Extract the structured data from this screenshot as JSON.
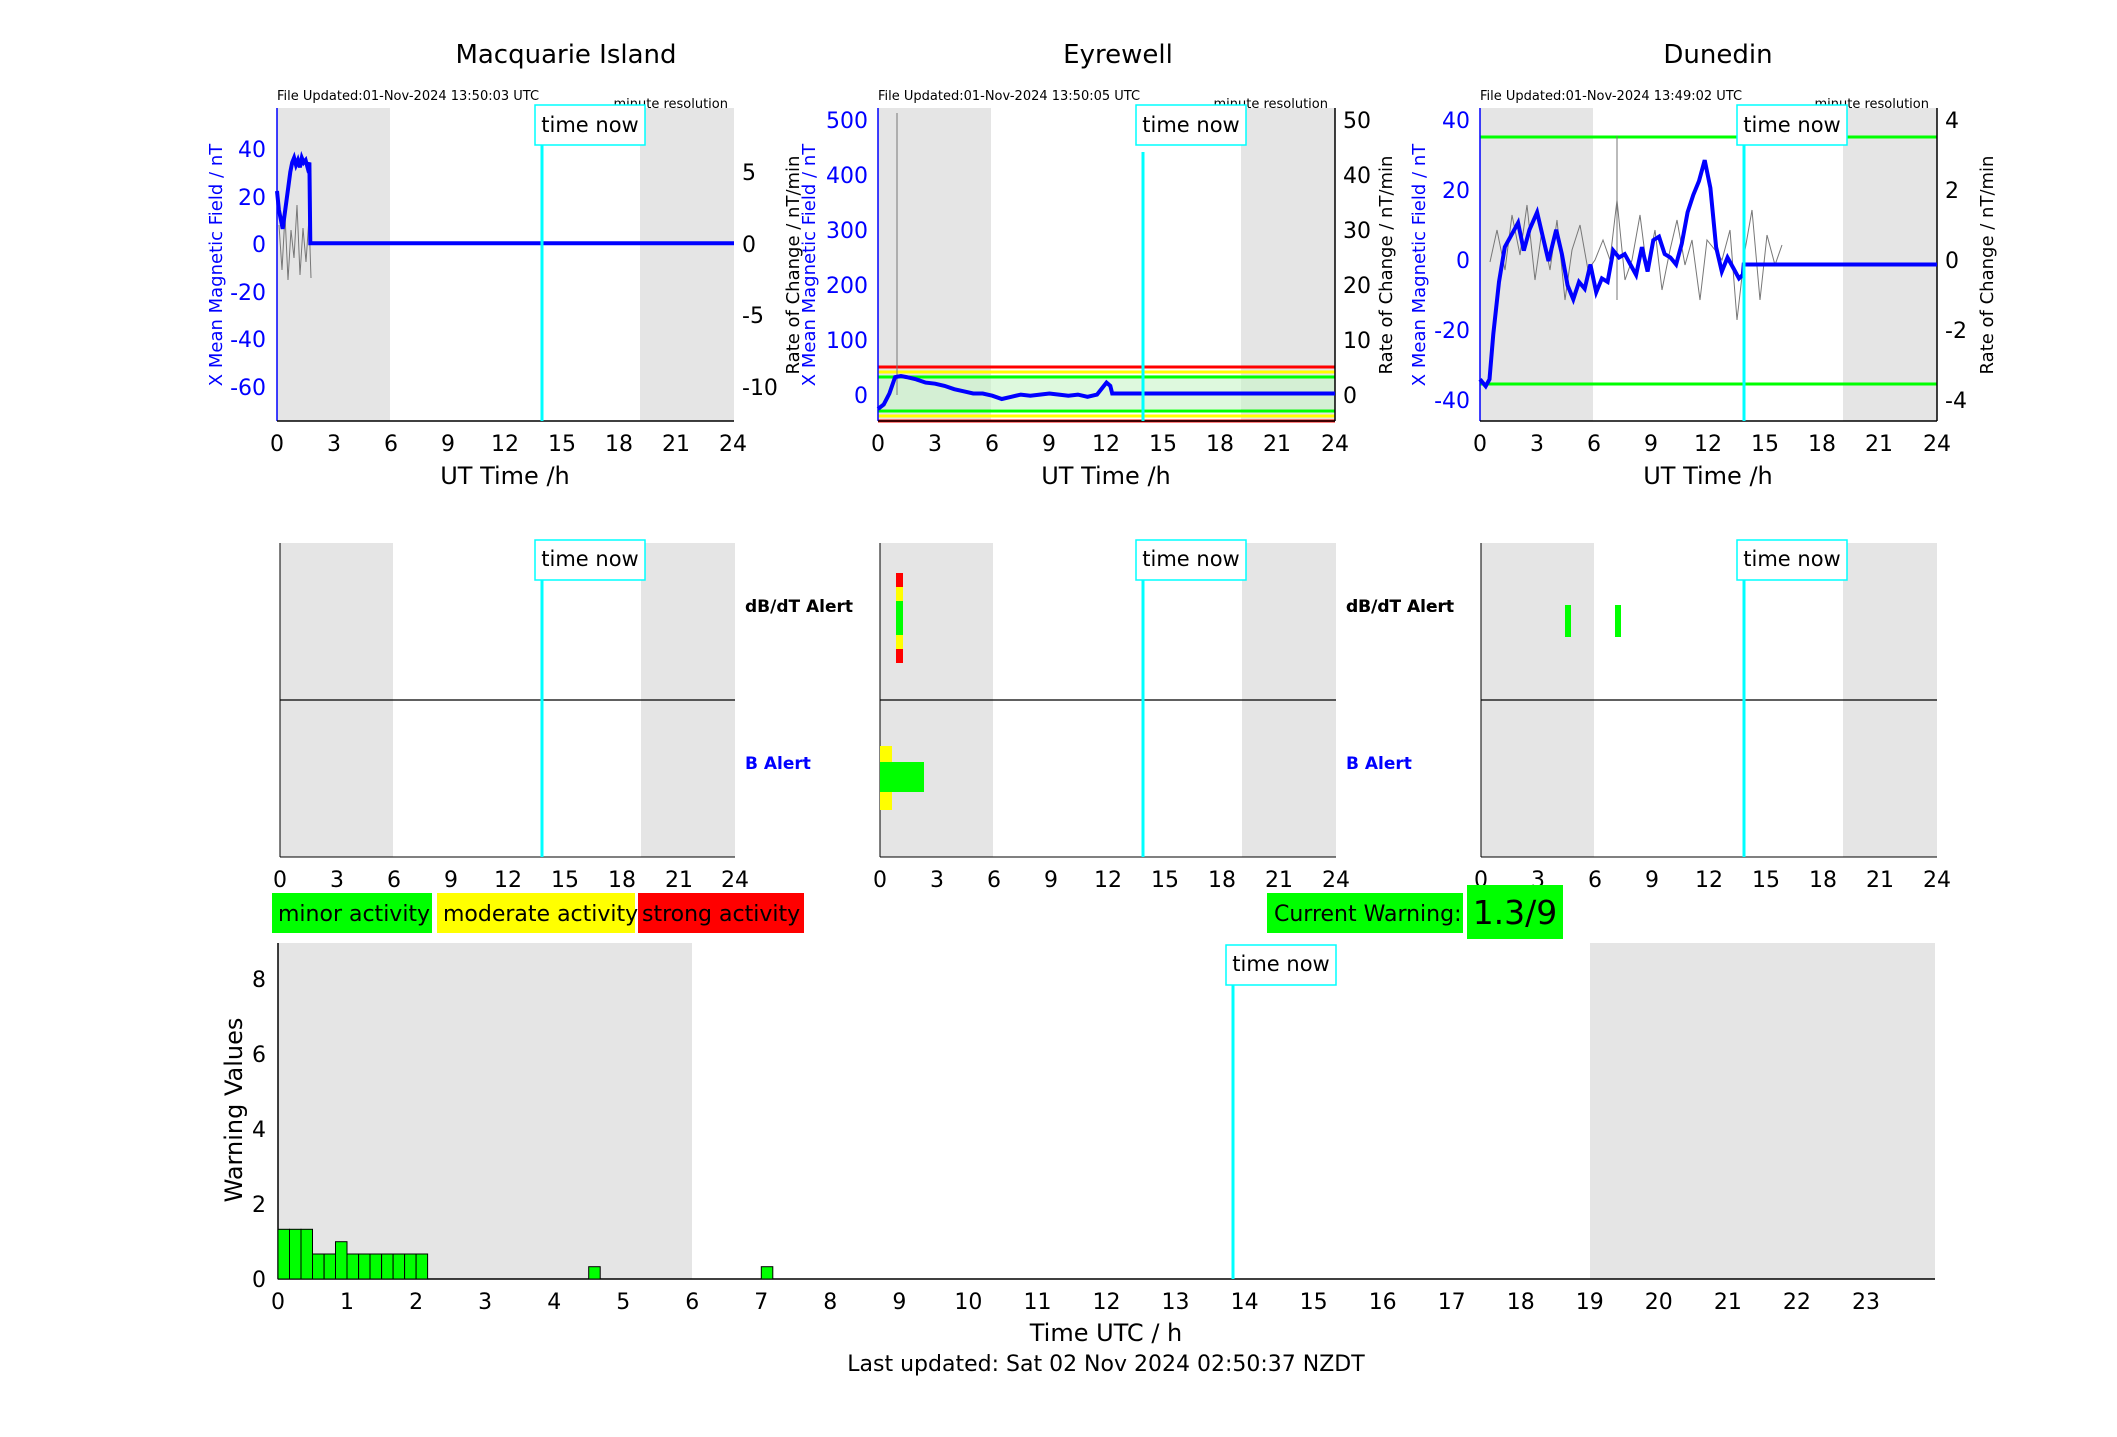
{
  "stations": [
    {
      "name": "Macquarie Island",
      "file_updated": "File Updated:01-Nov-2024 13:50:03 UTC",
      "resolution": "minute resolution",
      "ylabel_left": "X Mean Magnetic Field / nT",
      "ylabel_right": "",
      "left_ticks": [
        "40",
        "20",
        "0",
        "-20",
        "-40",
        "-60"
      ],
      "right_ticks": [
        "5",
        "0",
        "-5",
        "-10"
      ],
      "x_ticks": [
        "0",
        "3",
        "6",
        "9",
        "12",
        "15",
        "18",
        "21",
        "24"
      ],
      "xlabel": "UT Time /h",
      "time_now_label": "time now",
      "dbdt_label": "dB/dT Alert",
      "b_label": "B Alert"
    },
    {
      "name": "Eyrewell",
      "file_updated": "File Updated:01-Nov-2024 13:50:05 UTC",
      "resolution": "minute resolution",
      "ylabel_left": "X Mean Magnetic Field / nT",
      "ylabel_left2": "Rate of Change / nT/min",
      "ylabel_right": "Rate of Change / nT/min",
      "left_ticks": [
        "500",
        "400",
        "300",
        "200",
        "100",
        "0"
      ],
      "right_ticks": [
        "50",
        "40",
        "30",
        "20",
        "10",
        "0"
      ],
      "x_ticks": [
        "0",
        "3",
        "6",
        "9",
        "12",
        "15",
        "18",
        "21",
        "24"
      ],
      "xlabel": "UT Time /h",
      "time_now_label": "time now",
      "dbdt_label": "dB/dT Alert",
      "b_label": "B Alert"
    },
    {
      "name": "Dunedin",
      "file_updated": "File Updated:01-Nov-2024 13:49:02 UTC",
      "resolution": "minute resolution",
      "ylabel_left": "X Mean Magnetic Field / nT",
      "ylabel_right": "Rate of Change / nT/min",
      "left_ticks": [
        "40",
        "20",
        "0",
        "-20",
        "-40"
      ],
      "right_ticks": [
        "4",
        "2",
        "0",
        "-2",
        "-4"
      ],
      "x_ticks": [
        "0",
        "3",
        "6",
        "9",
        "12",
        "15",
        "18",
        "21",
        "24"
      ],
      "xlabel": "UT Time /h",
      "time_now_label": "time now"
    }
  ],
  "legend": {
    "minor": "minor activity",
    "moderate": "moderate activity",
    "strong": "strong activity",
    "current_warning_label": "Current Warning:",
    "current_warning_value": "1.3/9"
  },
  "warning_chart": {
    "ylabel": "Warning Values",
    "xlabel": "Time UTC / h",
    "y_ticks": [
      "8",
      "6",
      "4",
      "2",
      "0"
    ],
    "x_ticks": [
      "0",
      "1",
      "2",
      "3",
      "4",
      "5",
      "6",
      "7",
      "8",
      "9",
      "10",
      "11",
      "12",
      "13",
      "14",
      "15",
      "16",
      "17",
      "18",
      "19",
      "20",
      "21",
      "22",
      "23"
    ],
    "time_now_label": "time now"
  },
  "footer": "Last updated: Sat 02 Nov 2024 02:50:37 NZDT",
  "colors": {
    "minor": "#00ff00",
    "moderate": "#ffff00",
    "strong": "#ff0000",
    "time_now": "#00ffff",
    "night_shade": "#e5e5e5",
    "field": "#0000ff"
  },
  "chart_data": [
    {
      "type": "line",
      "title": "Macquarie Island",
      "xlabel": "UT Time /h",
      "ylabel": "X Mean Magnetic Field / nT",
      "xlim": [
        0,
        24
      ],
      "ylim_left": [
        -75,
        57
      ],
      "ylim_right": [
        -12.5,
        9.5
      ],
      "night_shade_hours": [
        [
          0,
          6
        ],
        [
          19,
          24
        ]
      ],
      "time_now_hour": 13.85,
      "series": [
        {
          "x": [
            0,
            0.1,
            0.2,
            0.3,
            0.4,
            0.5,
            0.6,
            0.7,
            0.8,
            0.9,
            1.0,
            1.1,
            1.2,
            1.3,
            1.4,
            1.5,
            1.6,
            1.7,
            1.75,
            1.8,
            2.0,
            24
          ],
          "y": [
            22,
            14,
            10,
            6,
            12,
            18,
            24,
            30,
            34,
            36,
            33,
            35,
            32,
            36,
            34,
            35,
            32,
            34,
            0,
            0,
            0,
            0
          ]
        }
      ]
    },
    {
      "type": "line",
      "title": "Eyrewell",
      "xlabel": "UT Time /h",
      "ylabel": "X Mean Magnetic Field / nT",
      "xlim": [
        0,
        24
      ],
      "ylim_left": [
        -50,
        520
      ],
      "ylim_right": [
        -5,
        52
      ],
      "night_shade_hours": [
        [
          0,
          6
        ],
        [
          19,
          24
        ]
      ],
      "time_now_hour": 13.85,
      "thresholds_right": [
        {
          "color": "#00ff00",
          "values": [
            3,
            -3
          ]
        },
        {
          "color": "#ffff00",
          "values": [
            3.6,
            -3.6
          ]
        },
        {
          "color": "#ff0000",
          "values": [
            5,
            -5
          ]
        }
      ],
      "series": [
        {
          "x": [
            0,
            0.3,
            0.6,
            0.9,
            1.2,
            1.5,
            2,
            2.5,
            3,
            3.5,
            4,
            4.5,
            5,
            5.5,
            6,
            6.5,
            7,
            7.5,
            8,
            8.5,
            9,
            9.5,
            10,
            10.5,
            11,
            11.5,
            12,
            12.2,
            12.3,
            14,
            24
          ],
          "y": [
            -28,
            -20,
            0,
            30,
            32,
            30,
            26,
            20,
            18,
            14,
            8,
            4,
            0,
            0,
            -4,
            -10,
            -6,
            -2,
            -4,
            -2,
            0,
            -2,
            -4,
            -2,
            -6,
            -2,
            20,
            14,
            0,
            0,
            0
          ]
        }
      ]
    },
    {
      "type": "line",
      "title": "Dunedin",
      "xlabel": "UT Time /h",
      "ylabel": "X Mean Magnetic Field / nT",
      "xlim": [
        0,
        24
      ],
      "ylim_left": [
        -45,
        45
      ],
      "ylim_right": [
        -4.5,
        4.2
      ],
      "night_shade_hours": [
        [
          0,
          6
        ],
        [
          19,
          24
        ]
      ],
      "time_now_hour": 13.85,
      "thresholds_left": [
        35,
        -35
      ],
      "series": [
        {
          "x": [
            0,
            0.3,
            0.5,
            0.7,
            1.0,
            1.3,
            1.6,
            2.0,
            2.3,
            2.6,
            3.0,
            3.3,
            3.6,
            4.0,
            4.3,
            4.6,
            4.9,
            5.2,
            5.5,
            5.8,
            6.1,
            6.4,
            6.7,
            7.0,
            7.3,
            7.6,
            7.9,
            8.2,
            8.5,
            8.8,
            9.1,
            9.4,
            9.7,
            10.0,
            10.3,
            10.6,
            10.9,
            11.2,
            11.5,
            11.8,
            12.1,
            12.4,
            12.7,
            13.0,
            13.3,
            13.6,
            13.8,
            13.85,
            24
          ],
          "y": [
            -33,
            -35,
            -33,
            -20,
            -5,
            5,
            8,
            12,
            4,
            10,
            15,
            8,
            1,
            10,
            3,
            -6,
            -10,
            -5,
            -7,
            0,
            -8,
            -4,
            -5,
            4,
            2,
            3,
            0,
            -3,
            5,
            -2,
            7,
            8,
            3,
            2,
            0,
            6,
            15,
            20,
            24,
            30,
            22,
            5,
            -2,
            2,
            -1,
            -4,
            -3,
            0,
            0
          ]
        }
      ]
    },
    {
      "type": "bar",
      "title": "",
      "xlabel": "Time UTC / h",
      "ylabel": "Warning Values",
      "xlim": [
        0,
        24
      ],
      "ylim": [
        0,
        9
      ],
      "night_shade_hours": [
        [
          0,
          6
        ],
        [
          19,
          24
        ]
      ],
      "time_now_hour": 13.85,
      "bars": [
        {
          "x": 0.0,
          "value": 1.33
        },
        {
          "x": 0.167,
          "value": 1.33
        },
        {
          "x": 0.333,
          "value": 1.33
        },
        {
          "x": 0.5,
          "value": 0.67
        },
        {
          "x": 0.667,
          "value": 0.67
        },
        {
          "x": 0.833,
          "value": 1.0
        },
        {
          "x": 1.0,
          "value": 0.67
        },
        {
          "x": 1.167,
          "value": 0.67
        },
        {
          "x": 1.333,
          "value": 0.67
        },
        {
          "x": 1.5,
          "value": 0.67
        },
        {
          "x": 1.667,
          "value": 0.67
        },
        {
          "x": 1.833,
          "value": 0.67
        },
        {
          "x": 2.0,
          "value": 0.67
        },
        {
          "x": 4.5,
          "value": 0.33
        },
        {
          "x": 7.0,
          "value": 0.33
        }
      ],
      "bar_width_hours": 0.167
    }
  ]
}
